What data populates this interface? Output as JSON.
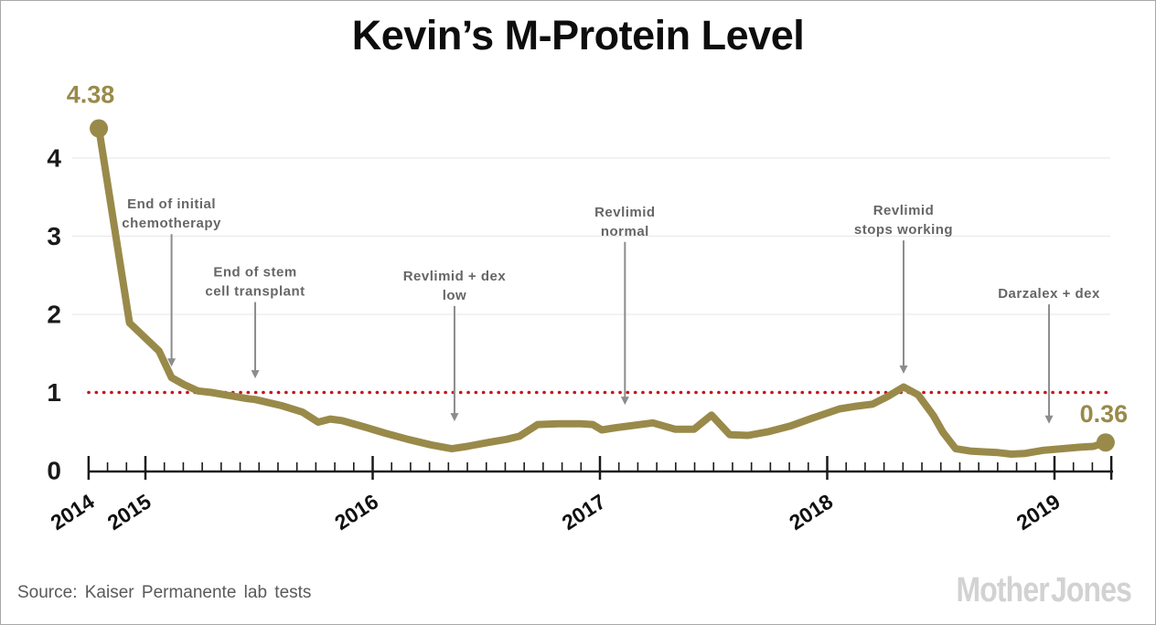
{
  "footer": {
    "source": "Source: Kaiser Permanente lab tests",
    "logo": "Mother Jones"
  },
  "colors": {
    "series": "#998a4a",
    "reference_line": "#c8141c",
    "annotation_text": "#666666",
    "annotation_arrow": "#8c8c8c",
    "axis": "#1a1a1a",
    "gridline": "#eaeaea",
    "year_label": "#111111",
    "value_label": "#998a4a"
  },
  "chart_data": {
    "type": "line",
    "title": "Kevin’s M-Protein Level",
    "xlabel": "",
    "ylabel": "",
    "x_range": [
      2014.75,
      2019.26
    ],
    "y_range": [
      0,
      4.5
    ],
    "y_ticks": [
      0,
      1,
      2,
      3,
      4
    ],
    "grid_y": [
      2,
      3,
      4
    ],
    "grid_on": true,
    "minor_tick_interval_months": 1,
    "x_major_ticks": [
      {
        "t": 2014.75,
        "label": "2014"
      },
      {
        "t": 2015,
        "label": "2015"
      },
      {
        "t": 2016,
        "label": "2016"
      },
      {
        "t": 2017,
        "label": "2017"
      },
      {
        "t": 2018,
        "label": "2018"
      },
      {
        "t": 2019,
        "label": "2019"
      },
      {
        "t": 2019.25,
        "label": ""
      }
    ],
    "reference_line": {
      "value": 1,
      "style": "dotted"
    },
    "start_label": "4.38",
    "end_label": "0.36",
    "series": [
      {
        "name": "M-Protein Level",
        "points": [
          [
            2014.795,
            4.38
          ],
          [
            2014.93,
            1.89
          ],
          [
            2015.06,
            1.53
          ],
          [
            2015.115,
            1.19
          ],
          [
            2015.17,
            1.1
          ],
          [
            2015.23,
            1.02
          ],
          [
            2015.29,
            1.0
          ],
          [
            2015.37,
            0.96
          ],
          [
            2015.45,
            0.92
          ],
          [
            2015.483,
            0.91
          ],
          [
            2015.6,
            0.83
          ],
          [
            2015.69,
            0.75
          ],
          [
            2015.76,
            0.62
          ],
          [
            2015.813,
            0.66
          ],
          [
            2015.865,
            0.64
          ],
          [
            2015.974,
            0.55
          ],
          [
            2016.054,
            0.48
          ],
          [
            2016.155,
            0.4
          ],
          [
            2016.255,
            0.33
          ],
          [
            2016.348,
            0.28
          ],
          [
            2016.416,
            0.31
          ],
          [
            2016.509,
            0.36
          ],
          [
            2016.589,
            0.4
          ],
          [
            2016.646,
            0.44
          ],
          [
            2016.726,
            0.59
          ],
          [
            2016.819,
            0.6
          ],
          [
            2016.911,
            0.6
          ],
          [
            2016.968,
            0.59
          ],
          [
            2017.008,
            0.52
          ],
          [
            2017.072,
            0.55
          ],
          [
            2017.233,
            0.61
          ],
          [
            2017.33,
            0.53
          ],
          [
            2017.414,
            0.53
          ],
          [
            2017.491,
            0.71
          ],
          [
            2017.571,
            0.46
          ],
          [
            2017.652,
            0.45
          ],
          [
            2017.744,
            0.5
          ],
          [
            2017.837,
            0.57
          ],
          [
            2017.933,
            0.67
          ],
          [
            2018.054,
            0.79
          ],
          [
            2018.118,
            0.82
          ],
          [
            2018.199,
            0.85
          ],
          [
            2018.267,
            0.95
          ],
          [
            2018.336,
            1.07
          ],
          [
            2018.4,
            0.97
          ],
          [
            2018.468,
            0.7
          ],
          [
            2018.509,
            0.49
          ],
          [
            2018.565,
            0.28
          ],
          [
            2018.629,
            0.25
          ],
          [
            2018.69,
            0.24
          ],
          [
            2018.75,
            0.23
          ],
          [
            2018.81,
            0.21
          ],
          [
            2018.871,
            0.22
          ],
          [
            2018.951,
            0.26
          ],
          [
            2019.031,
            0.28
          ],
          [
            2019.112,
            0.3
          ],
          [
            2019.172,
            0.31
          ],
          [
            2019.225,
            0.36
          ]
        ]
      }
    ],
    "annotations": [
      {
        "t": 2015.115,
        "lines": [
          "End of initial",
          "chemotherapy"
        ],
        "arrow_from": 3.05,
        "arrow_to": 1.33
      },
      {
        "t": 2015.483,
        "lines": [
          "End of stem",
          "cell transplant"
        ],
        "arrow_from": 2.18,
        "arrow_to": 1.18
      },
      {
        "t": 2016.36,
        "lines": [
          "Revlimid + dex",
          "low"
        ],
        "arrow_from": 2.13,
        "arrow_to": 0.63
      },
      {
        "t": 2017.11,
        "lines": [
          "Revlimid",
          "normal"
        ],
        "arrow_from": 2.95,
        "arrow_to": 0.84
      },
      {
        "t": 2018.336,
        "lines": [
          "Revlimid",
          "stops working"
        ],
        "arrow_from": 2.97,
        "arrow_to": 1.24
      },
      {
        "t": 2018.976,
        "lines": [
          "Darzalex + dex"
        ],
        "arrow_from": 2.15,
        "arrow_to": 0.6
      }
    ]
  }
}
